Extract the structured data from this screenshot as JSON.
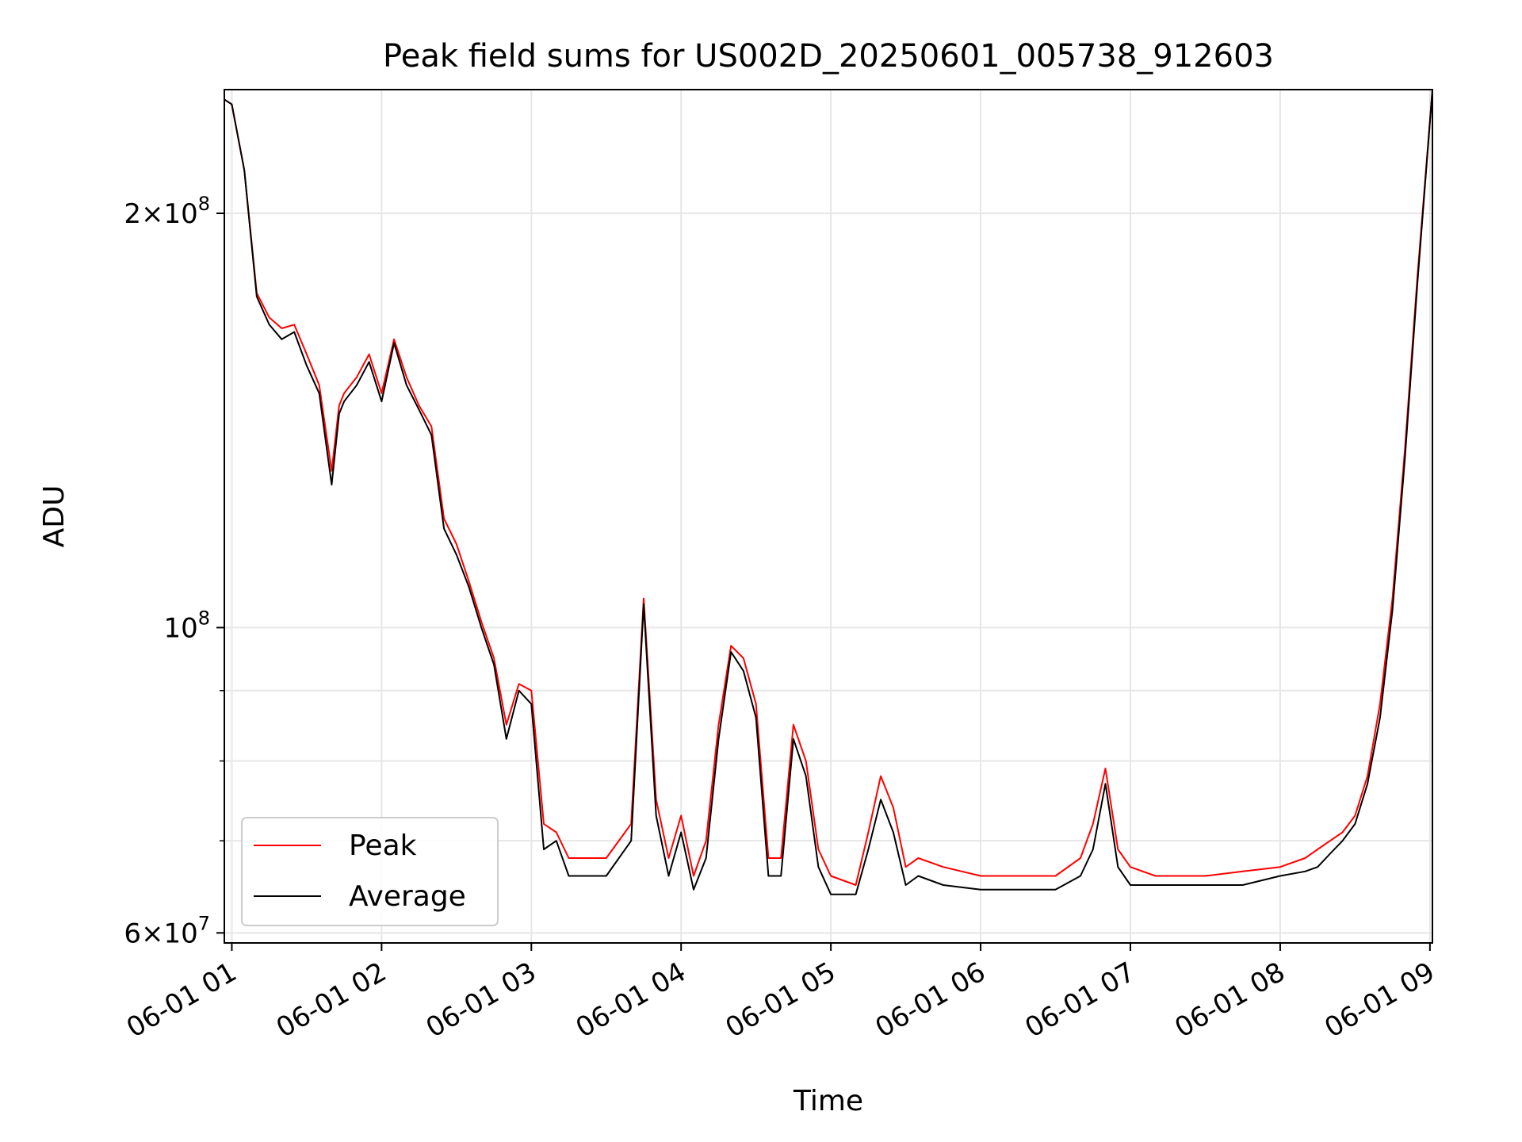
{
  "chart_data": {
    "type": "line",
    "title": "Peak field sums for US002D_20250601_005738_912603",
    "xlabel": "Time",
    "ylabel": "ADU",
    "xlim": [
      "06-01 00:57",
      "06-01 09:01"
    ],
    "ylim": [
      59000000,
      246000000
    ],
    "yscale": "log",
    "grid": true,
    "legend": "lower-left",
    "x_ticks": [
      "06-01 01",
      "06-01 02",
      "06-01 03",
      "06-01 04",
      "06-01 05",
      "06-01 06",
      "06-01 07",
      "06-01 08",
      "06-01 09"
    ],
    "y_tick_labels": [
      {
        "value": 60000000,
        "mantissa": "6",
        "exponent": "7"
      },
      {
        "value": 100000000,
        "mantissa": "",
        "exponent": "8"
      },
      {
        "value": 200000000,
        "mantissa": "2",
        "exponent": "8"
      }
    ],
    "y_minor_ticks": [
      70000000,
      80000000,
      90000000
    ],
    "colors": {
      "Peak": "#ff0000",
      "Average": "#000000",
      "grid": "#e6e6e6"
    },
    "x": [
      "00:57",
      "01:00",
      "01:05",
      "01:10",
      "01:15",
      "01:20",
      "01:25",
      "01:30",
      "01:35",
      "01:40",
      "01:43",
      "01:45",
      "01:50",
      "01:55",
      "02:00",
      "02:05",
      "02:10",
      "02:15",
      "02:20",
      "02:25",
      "02:30",
      "02:35",
      "02:40",
      "02:45",
      "02:50",
      "02:55",
      "03:00",
      "03:05",
      "03:10",
      "03:15",
      "03:20",
      "03:30",
      "03:40",
      "03:45",
      "03:50",
      "03:55",
      "04:00",
      "04:05",
      "04:10",
      "04:15",
      "04:20",
      "04:25",
      "04:30",
      "04:35",
      "04:40",
      "04:45",
      "04:50",
      "04:55",
      "05:00",
      "05:10",
      "05:15",
      "05:20",
      "05:25",
      "05:30",
      "05:35",
      "05:45",
      "06:00",
      "06:15",
      "06:30",
      "06:40",
      "06:45",
      "06:50",
      "06:55",
      "07:00",
      "07:10",
      "07:20",
      "07:30",
      "07:45",
      "08:00",
      "08:10",
      "08:15",
      "08:20",
      "08:25",
      "08:30",
      "08:35",
      "08:40",
      "08:45",
      "08:50",
      "08:55",
      "09:01"
    ],
    "series": [
      {
        "name": "Peak",
        "values": [
          242,
          240,
          215,
          175,
          168,
          165,
          166,
          158,
          150,
          130,
          145,
          148,
          152,
          158,
          148,
          162,
          152,
          145,
          140,
          120,
          115,
          108,
          101,
          95,
          85,
          91,
          90,
          72,
          71,
          68,
          68,
          68,
          72,
          105,
          75,
          68,
          73,
          66,
          70,
          85,
          97,
          95,
          88,
          68,
          68,
          85,
          80,
          69,
          66,
          65,
          71,
          78,
          74,
          67,
          68,
          67,
          66,
          66,
          66,
          68,
          72,
          79,
          69,
          67,
          66,
          66,
          66,
          66.5,
          67,
          68,
          69,
          70,
          71,
          73,
          78,
          88,
          105,
          135,
          180,
          246
        ]
      },
      {
        "name": "Average",
        "values": [
          242,
          240,
          215,
          174,
          166,
          162,
          164,
          155,
          148,
          127,
          143,
          146,
          150,
          156,
          146,
          161,
          150,
          144,
          138,
          118,
          113,
          107,
          100,
          94,
          83,
          90,
          88,
          69,
          70,
          66,
          66,
          66,
          70,
          104,
          73,
          66,
          71,
          64.5,
          68,
          83,
          96,
          93,
          86,
          66,
          66,
          83,
          78,
          67,
          64,
          64,
          69,
          75,
          71,
          65,
          66,
          65,
          64.5,
          64.5,
          64.5,
          66,
          69,
          77,
          67,
          65,
          65,
          65,
          65,
          65,
          66,
          66.5,
          67,
          68.5,
          70,
          72,
          77,
          86,
          103,
          133,
          178,
          246
        ]
      }
    ]
  }
}
